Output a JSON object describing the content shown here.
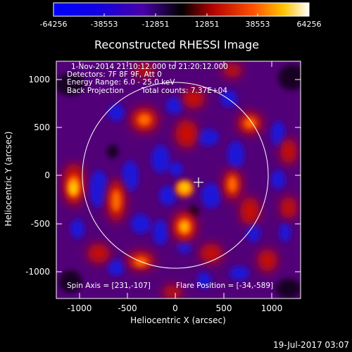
{
  "colorbar": {
    "ticks": [
      "-64256",
      "-38553",
      "-12851",
      "12851",
      "38553",
      "64256"
    ]
  },
  "title": "Reconstructed RHESSI Image",
  "info": {
    "line1": "1-Nov-2014 21:10:12.000 to 21:20:12.000",
    "line2": "Detectors: 7F 8F 9F, Att 0",
    "line3": "Energy Range: 6.0 - 25.0 keV",
    "line4_left": "Back Projection",
    "line4_right": "Total counts: 7.37E+04"
  },
  "bottom_info": {
    "spin_axis": "Spin Axis = [231,-107]",
    "flare_position": "Flare Position = [-34,-589]"
  },
  "axes": {
    "xlabel": "Heliocentric X (arcsec)",
    "ylabel": "Heliocentric Y (arcsec)",
    "x_ticks": [
      "-1000",
      "-500",
      "0",
      "500",
      "1000"
    ],
    "y_ticks": [
      "1000",
      "500",
      "0",
      "-500",
      "-1000"
    ]
  },
  "timestamp": "19-Jul-2017 03:07",
  "colors": {
    "background": "#000000",
    "limb": "#ffffff"
  },
  "icons": {
    "center_marker": "crosshair-icon"
  }
}
